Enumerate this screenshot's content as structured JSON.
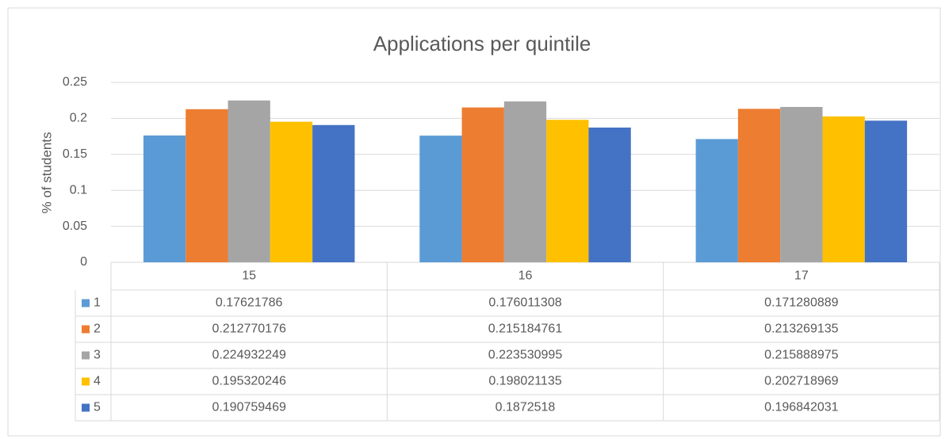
{
  "chart_data": {
    "type": "bar",
    "title": "Applications per quintile",
    "y_label": "% of students",
    "categories": [
      "15",
      "16",
      "17"
    ],
    "series": [
      {
        "name": "1",
        "color": "#5b9bd5",
        "values": [
          0.17621786,
          0.176011308,
          0.171280889
        ]
      },
      {
        "name": "2",
        "color": "#ed7d31",
        "values": [
          0.212770176,
          0.215184761,
          0.213269135
        ]
      },
      {
        "name": "3",
        "color": "#a5a5a5",
        "values": [
          0.224932249,
          0.223530995,
          0.215888975
        ]
      },
      {
        "name": "4",
        "color": "#ffc000",
        "values": [
          0.195320246,
          0.198021135,
          0.202718969
        ]
      },
      {
        "name": "5",
        "color": "#4472c4",
        "values": [
          0.190759469,
          0.1872518,
          0.196842031
        ]
      }
    ],
    "ylim": [
      0,
      0.25
    ],
    "yticks": [
      0,
      0.05,
      0.1,
      0.15,
      0.2,
      0.25
    ],
    "grid": true
  }
}
